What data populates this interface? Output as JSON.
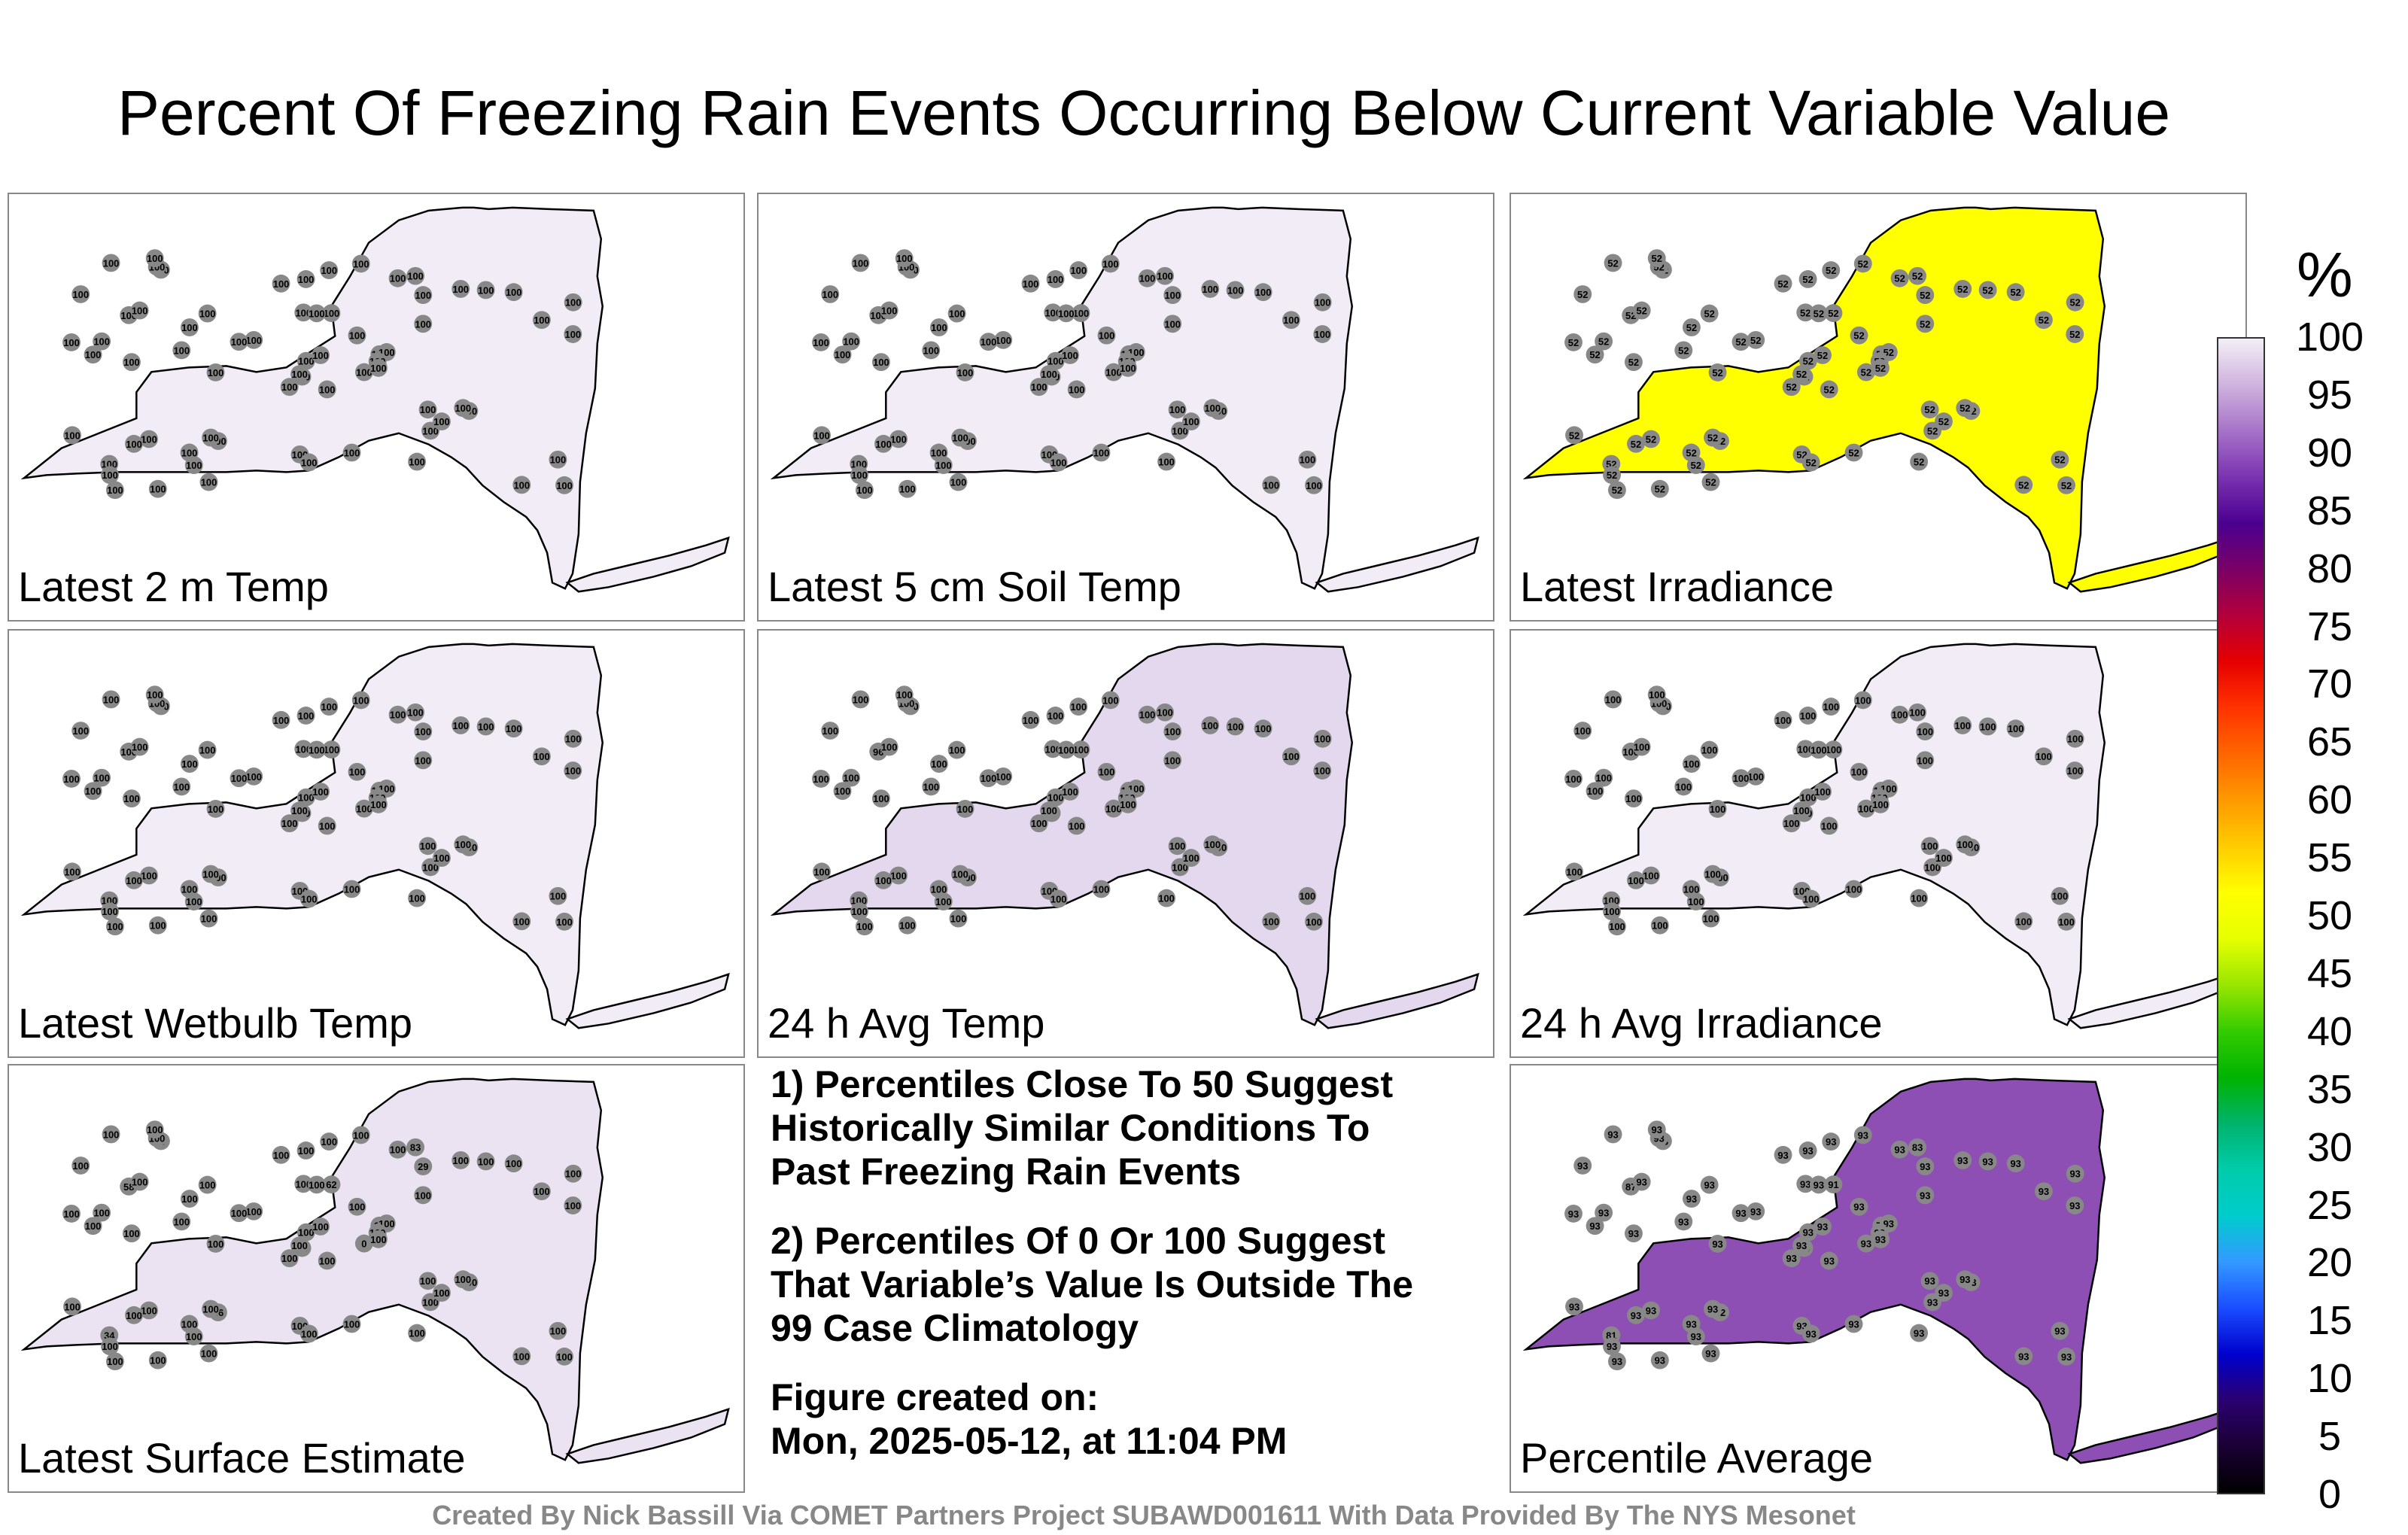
{
  "title": "Percent Of Freezing Rain Events Occurring Below Current Variable Value",
  "panels": [
    {
      "label": "Latest 2 m Temp",
      "fill": "#f1ecf6",
      "marker_values": [
        "100"
      ]
    },
    {
      "label": "Latest 5 cm Soil Temp",
      "fill": "#f1ecf6",
      "marker_values": [
        "100"
      ]
    },
    {
      "label": "Latest Irradiance",
      "fill": "#ffff00",
      "marker_values": [
        "52"
      ]
    },
    {
      "label": "Latest Wetbulb Temp",
      "fill": "#f1ecf6",
      "marker_values": [
        "100"
      ]
    },
    {
      "label": "24 h Avg Temp",
      "fill": "#e4d8ee",
      "marker_values": [
        "100",
        "96",
        "99"
      ]
    },
    {
      "label": "24 h Avg Irradiance",
      "fill": "#f1ecf6",
      "marker_values": [
        "100"
      ]
    },
    {
      "label": "Latest Surface Estimate",
      "fill": "#ebe3f2",
      "marker_values": [
        "100",
        "58",
        "98",
        "34",
        "94",
        "56",
        "83",
        "62",
        "29",
        "0",
        "27"
      ]
    },
    {
      "label": "Percentile Average",
      "fill": "#8e4fb5",
      "marker_values": [
        "93",
        "87",
        "84",
        "81",
        "79",
        "92",
        "83",
        "91"
      ]
    }
  ],
  "notes": {
    "note1": "1) Percentiles Close To 50 Suggest Historically Similar Conditions To Past Freezing Rain Events",
    "note2": "2) Percentiles Of 0 Or 100 Suggest That Variable’s Value Is Outside The 99 Case Climatology",
    "created_label": "Figure created on:",
    "created_date": "Mon, 2025-05-12, at 11:04 PM"
  },
  "legend": {
    "unit": "%",
    "ticks": [
      "100",
      "95",
      "90",
      "85",
      "80",
      "75",
      "70",
      "65",
      "60",
      "55",
      "50",
      "45",
      "40",
      "35",
      "30",
      "25",
      "20",
      "15",
      "10",
      "5",
      "0"
    ]
  },
  "footer": "Created By Nick Bassill Via COMET Partners Project SUBAWD001611 With Data Provided By The NYS Mesonet"
}
